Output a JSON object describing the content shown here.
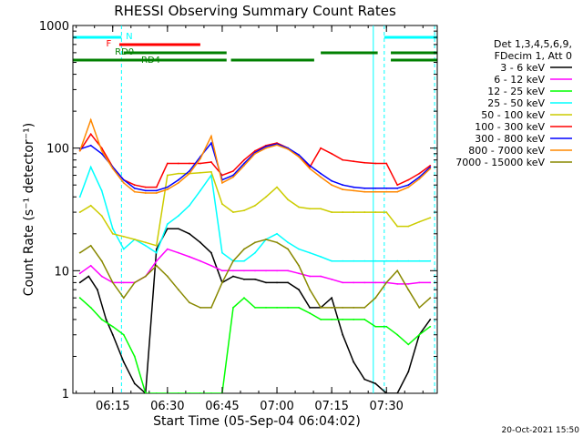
{
  "chart_data": {
    "type": "line",
    "title": "RHESSI Observing Summary Count Rates",
    "xlabel": "Start Time (05-Sep-04 06:04:02)",
    "ylabel": "Count Rate (s⁻¹ detector⁻¹)",
    "y_scale": "log",
    "ylim": [
      1,
      1000
    ],
    "xlim_minutes": [
      6.068,
      7.732
    ],
    "x_tick_labels": [
      "06:15",
      "06:30",
      "06:45",
      "07:00",
      "07:15",
      "07:30"
    ],
    "x_tick_hours": [
      6.25,
      6.5,
      6.75,
      7.0,
      7.25,
      7.5
    ],
    "y_tick_labels": [
      "1",
      "10",
      "100",
      "1000"
    ],
    "y_tick_values": [
      1,
      10,
      100,
      1000
    ],
    "legend_header": [
      "Det 1,3,4,5,6,9,",
      "FDecim 1, Att 0"
    ],
    "legend_position": "right",
    "series": [
      {
        "name": "3 - 6 keV",
        "color": "#000000",
        "x": [
          6.1,
          6.14,
          6.18,
          6.22,
          6.25,
          6.3,
          6.35,
          6.4,
          6.45,
          6.5,
          6.55,
          6.6,
          6.65,
          6.7,
          6.75,
          6.8,
          6.85,
          6.9,
          6.95,
          7.0,
          7.05,
          7.1,
          7.15,
          7.2,
          7.25,
          7.3,
          7.35,
          7.4,
          7.45,
          7.5,
          7.55,
          7.6,
          7.65,
          7.7
        ],
        "y": [
          8,
          9,
          7,
          4,
          3,
          1.8,
          1.2,
          1,
          15,
          22,
          22,
          20,
          17,
          14,
          8,
          9,
          8.5,
          8.5,
          8,
          8,
          8,
          7,
          5,
          5,
          6,
          3,
          1.8,
          1.3,
          1.2,
          1,
          1,
          1.5,
          3,
          4
        ]
      },
      {
        "name": "6 - 12 keV",
        "color": "#ff00ff",
        "x": [
          6.1,
          6.15,
          6.2,
          6.25,
          6.3,
          6.35,
          6.4,
          6.45,
          6.5,
          6.55,
          6.6,
          6.65,
          6.7,
          6.75,
          6.8,
          6.85,
          6.9,
          6.95,
          7.0,
          7.05,
          7.1,
          7.15,
          7.2,
          7.25,
          7.3,
          7.35,
          7.4,
          7.45,
          7.5,
          7.55,
          7.6,
          7.65,
          7.7
        ],
        "y": [
          9.5,
          11,
          9,
          8,
          8,
          8,
          9,
          12,
          15,
          14,
          13,
          12,
          11,
          10,
          10,
          10,
          10,
          10,
          10,
          10,
          9.5,
          9,
          9,
          8.5,
          8,
          8,
          8,
          8,
          8,
          7.8,
          7.8,
          8,
          8
        ]
      },
      {
        "name": "12 - 25 keV",
        "color": "#00ff00",
        "x": [
          6.1,
          6.15,
          6.2,
          6.25,
          6.3,
          6.35,
          6.4,
          6.45,
          6.5,
          6.55,
          6.6,
          6.65,
          6.7,
          6.75,
          6.8,
          6.85,
          6.9,
          6.95,
          7.0,
          7.05,
          7.1,
          7.15,
          7.2,
          7.25,
          7.3,
          7.35,
          7.4,
          7.45,
          7.5,
          7.55,
          7.6,
          7.65,
          7.7
        ],
        "y": [
          6,
          5,
          4,
          3.5,
          3,
          2,
          1,
          1,
          1,
          1,
          1,
          1,
          1,
          1,
          5,
          6,
          5,
          5,
          5,
          5,
          5,
          4.5,
          4,
          4,
          4,
          4,
          4,
          3.5,
          3.5,
          3,
          2.5,
          3,
          3.5
        ]
      },
      {
        "name": "25 - 50 keV",
        "color": "#00ffff",
        "x": [
          6.1,
          6.15,
          6.2,
          6.25,
          6.3,
          6.35,
          6.4,
          6.45,
          6.5,
          6.55,
          6.6,
          6.65,
          6.7,
          6.75,
          6.8,
          6.85,
          6.9,
          6.95,
          7.0,
          7.05,
          7.1,
          7.15,
          7.2,
          7.25,
          7.3,
          7.35,
          7.4,
          7.45,
          7.5,
          7.55,
          7.6,
          7.65,
          7.7
        ],
        "y": [
          40,
          70,
          45,
          22,
          15,
          18,
          16,
          14,
          24,
          28,
          34,
          45,
          60,
          14,
          12,
          12,
          14,
          18,
          20,
          17,
          15,
          14,
          13,
          12,
          12,
          12,
          12,
          12,
          12,
          12,
          12,
          12,
          12
        ]
      },
      {
        "name": "50 - 100 keV",
        "color": "#cccc00",
        "x": [
          6.1,
          6.15,
          6.2,
          6.25,
          6.3,
          6.35,
          6.4,
          6.45,
          6.5,
          6.55,
          6.6,
          6.65,
          6.7,
          6.75,
          6.8,
          6.85,
          6.9,
          6.95,
          7.0,
          7.05,
          7.1,
          7.15,
          7.2,
          7.25,
          7.3,
          7.35,
          7.4,
          7.45,
          7.5,
          7.55,
          7.6,
          7.65,
          7.7
        ],
        "y": [
          30,
          34,
          28,
          20,
          19,
          18,
          17,
          16,
          60,
          62,
          62,
          63,
          64,
          35,
          30,
          31,
          34,
          40,
          48,
          38,
          33,
          32,
          32,
          30,
          30,
          30,
          30,
          30,
          30,
          23,
          23,
          25,
          27
        ]
      },
      {
        "name": "100 - 300 keV",
        "color": "#ff0000",
        "x": [
          6.1,
          6.15,
          6.2,
          6.25,
          6.3,
          6.35,
          6.4,
          6.45,
          6.5,
          6.55,
          6.6,
          6.65,
          6.7,
          6.75,
          6.8,
          6.85,
          6.9,
          6.95,
          7.0,
          7.05,
          7.1,
          7.15,
          7.2,
          7.25,
          7.3,
          7.35,
          7.4,
          7.45,
          7.5,
          7.55,
          7.6,
          7.65,
          7.7
        ],
        "y": [
          95,
          130,
          100,
          70,
          55,
          50,
          48,
          48,
          75,
          75,
          75,
          75,
          77,
          60,
          65,
          80,
          95,
          105,
          110,
          100,
          85,
          70,
          100,
          90,
          80,
          78,
          76,
          75,
          75,
          50,
          55,
          62,
          72
        ]
      },
      {
        "name": "300 - 800 keV",
        "color": "#0000ff",
        "x": [
          6.1,
          6.15,
          6.2,
          6.25,
          6.3,
          6.35,
          6.4,
          6.45,
          6.5,
          6.55,
          6.6,
          6.65,
          6.7,
          6.75,
          6.8,
          6.85,
          6.9,
          6.95,
          7.0,
          7.05,
          7.1,
          7.15,
          7.2,
          7.25,
          7.3,
          7.35,
          7.4,
          7.45,
          7.5,
          7.55,
          7.6,
          7.65,
          7.7
        ],
        "y": [
          98,
          105,
          90,
          70,
          55,
          47,
          45,
          45,
          48,
          55,
          65,
          85,
          110,
          55,
          60,
          75,
          92,
          103,
          108,
          100,
          88,
          72,
          62,
          54,
          50,
          48,
          47,
          47,
          47,
          47,
          50,
          58,
          70
        ]
      },
      {
        "name": "800 - 7000 keV",
        "color": "#ff8800",
        "x": [
          6.1,
          6.15,
          6.2,
          6.25,
          6.3,
          6.35,
          6.4,
          6.45,
          6.5,
          6.55,
          6.6,
          6.65,
          6.7,
          6.75,
          6.8,
          6.85,
          6.9,
          6.95,
          7.0,
          7.05,
          7.1,
          7.15,
          7.2,
          7.25,
          7.3,
          7.35,
          7.4,
          7.45,
          7.5,
          7.55,
          7.6,
          7.65,
          7.7
        ],
        "y": [
          95,
          170,
          95,
          68,
          52,
          44,
          43,
          43,
          46,
          52,
          62,
          82,
          125,
          52,
          58,
          72,
          90,
          100,
          106,
          98,
          85,
          68,
          58,
          50,
          46,
          45,
          44,
          44,
          44,
          44,
          48,
          56,
          68
        ]
      },
      {
        "name": "7000 - 15000 keV",
        "color": "#888800",
        "x": [
          6.1,
          6.15,
          6.2,
          6.25,
          6.3,
          6.35,
          6.4,
          6.45,
          6.5,
          6.55,
          6.6,
          6.65,
          6.7,
          6.75,
          6.8,
          6.85,
          6.9,
          6.95,
          7.0,
          7.05,
          7.1,
          7.15,
          7.2,
          7.25,
          7.3,
          7.35,
          7.4,
          7.45,
          7.5,
          7.55,
          7.6,
          7.65,
          7.7
        ],
        "y": [
          14,
          16,
          12,
          8,
          6,
          8,
          9,
          11,
          9,
          7,
          5.5,
          5,
          5,
          8,
          12,
          15,
          17,
          18,
          17,
          15,
          11,
          7,
          5,
          5,
          5,
          5,
          5,
          6,
          8,
          10,
          7,
          5,
          6
        ]
      }
    ],
    "annotations": {
      "attenuator_label": "N",
      "flare_label": "F",
      "rd_labels": [
        "RD0",
        "RD4"
      ]
    }
  },
  "footer_date": "20-Oct-2021 15:50"
}
